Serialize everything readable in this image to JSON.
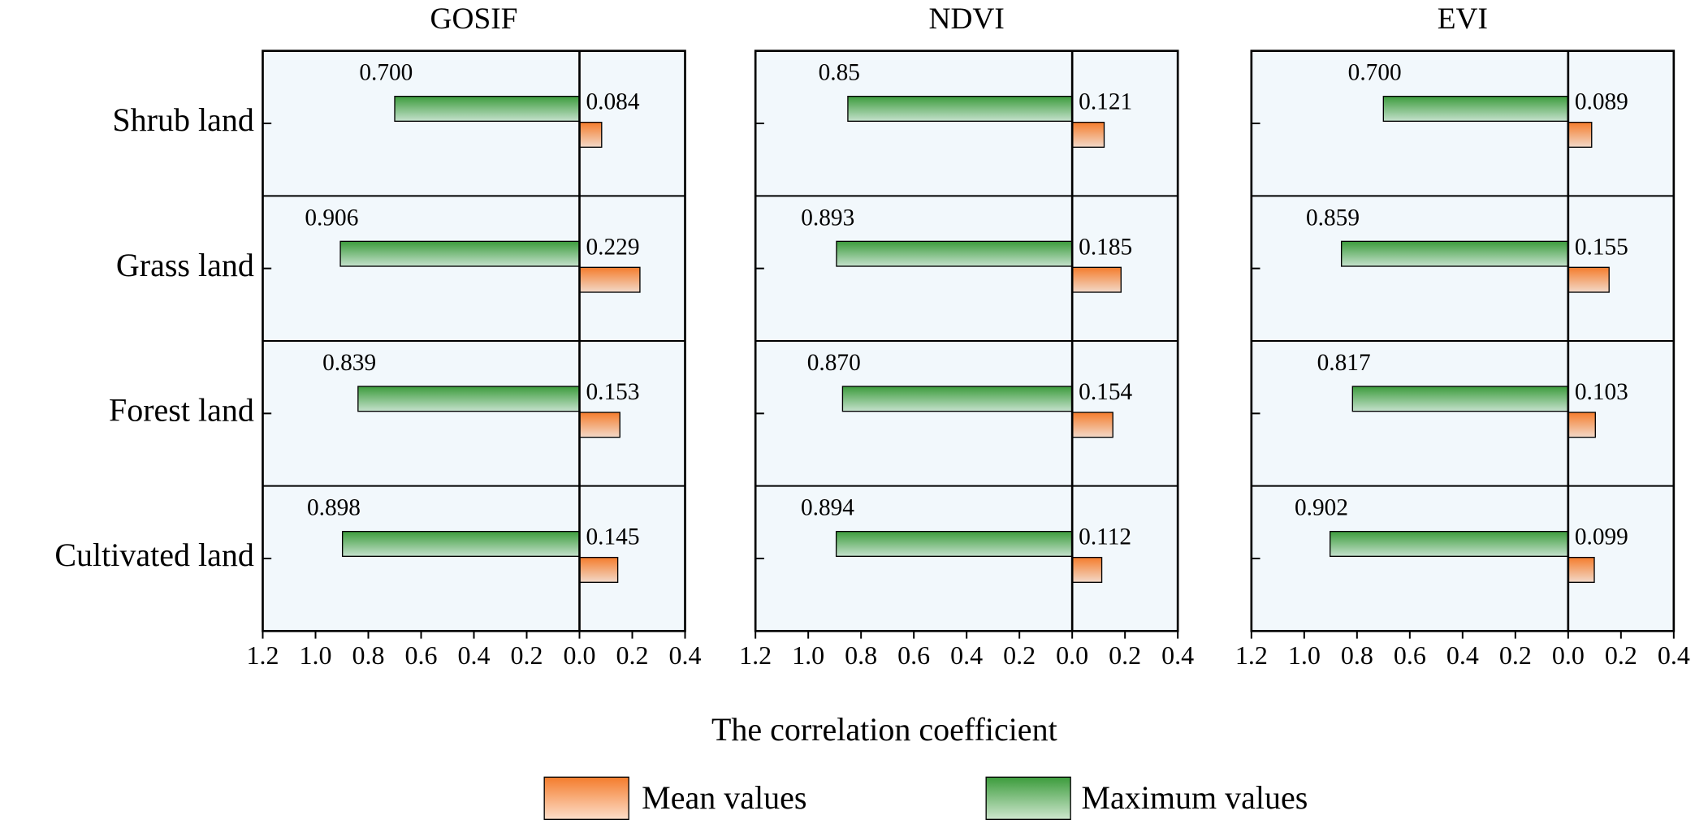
{
  "chart_data": [
    {
      "type": "bar",
      "title": "GOSIF",
      "categories": [
        "Shrub land",
        "Grass land",
        "Forest land",
        "Cultivated land"
      ],
      "series": [
        {
          "name": "Maximum values",
          "color": "#3c9c3c",
          "values": [
            -0.7,
            -0.906,
            -0.839,
            -0.898
          ],
          "value_labels": [
            "0.700",
            "0.906",
            "0.839",
            "0.898"
          ]
        },
        {
          "name": "Mean values",
          "color": "#f47c2c",
          "values": [
            0.084,
            0.229,
            0.153,
            0.145
          ]
        }
      ],
      "xlim": [
        -1.2,
        0.4
      ],
      "xticks": [
        {
          "value": -1.2,
          "label": "1.2"
        },
        {
          "value": -1.0,
          "label": "1.0"
        },
        {
          "value": -0.8,
          "label": "0.8"
        },
        {
          "value": -0.6,
          "label": "0.6"
        },
        {
          "value": -0.4,
          "label": "0.4"
        },
        {
          "value": -0.2,
          "label": "0.2"
        },
        {
          "value": 0,
          "label": "0.0"
        },
        0.2,
        0.4
      ]
    },
    {
      "type": "bar",
      "title": "NDVI",
      "series": [
        {
          "values": [
            -0.85,
            -0.893,
            -0.87,
            -0.894
          ],
          "value_labels": [
            "0.85",
            "0.893",
            "0.870",
            "0.894"
          ]
        },
        {
          "values": [
            0.121,
            0.185,
            0.154,
            0.112
          ]
        }
      ],
      "xlim": [
        -1.2,
        0.4
      ],
      "xticks": [
        {
          "value": -1.2,
          "label": "1.2"
        },
        {
          "value": -1.0,
          "label": "1.0"
        },
        {
          "value": -0.8,
          "label": "0.8"
        },
        {
          "value": -0.6,
          "label": "0.6"
        },
        {
          "value": -0.4,
          "label": "0.4"
        },
        {
          "value": -0.2,
          "label": "0.2"
        },
        {
          "value": 0,
          "label": "0.0"
        },
        0.2,
        0.4
      ]
    },
    {
      "type": "bar",
      "title": "EVI",
      "series": [
        {
          "values": [
            -0.7,
            -0.859,
            -0.817,
            -0.902
          ],
          "value_labels": [
            "0.700",
            "0.859",
            "0.817",
            "0.902"
          ]
        },
        {
          "values": [
            0.089,
            0.155,
            0.103,
            0.099
          ]
        }
      ],
      "xlim": [
        -1.2,
        0.4
      ],
      "xticks": [
        {
          "value": -1.2,
          "label": "1.2"
        },
        {
          "value": -1.0,
          "label": "1.0"
        },
        {
          "value": -0.8,
          "label": "0.8"
        },
        {
          "value": -0.6,
          "label": "0.6"
        },
        {
          "value": -0.4,
          "label": "0.4"
        },
        {
          "value": -0.2,
          "label": "0.2"
        },
        {
          "value": 0,
          "label": "0.0"
        },
        0.2,
        0.4
      ]
    }
  ],
  "xlabel": "The correlation coefficient"
}
